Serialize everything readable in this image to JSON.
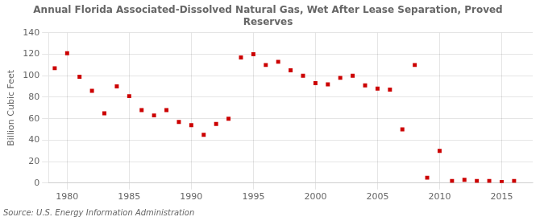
{
  "chart_data": {
    "type": "scatter",
    "title": "Annual Florida Associated-Dissolved Natural Gas, Wet After Lease Separation, Proved\nReserves",
    "ylabel": "Billion Cubic Feet",
    "annotation": "Source: U.S. Energy Information Administration",
    "color": "#cc0000",
    "marker": "square",
    "x": [
      1979,
      1980,
      1981,
      1982,
      1983,
      1984,
      1985,
      1986,
      1987,
      1988,
      1989,
      1990,
      1991,
      1992,
      1993,
      1994,
      1995,
      1996,
      1997,
      1998,
      1999,
      2000,
      2001,
      2002,
      2003,
      2004,
      2005,
      2006,
      2007,
      2008,
      2009,
      2010,
      2011,
      2012,
      2013,
      2014,
      2015,
      2016
    ],
    "values": [
      107,
      121,
      99,
      86,
      65,
      90,
      81,
      68,
      63,
      68,
      57,
      54,
      45,
      55,
      60,
      117,
      120,
      110,
      113,
      105,
      100,
      93,
      92,
      98,
      100,
      91,
      88,
      87,
      50,
      110,
      5,
      30,
      2,
      3,
      2,
      2,
      1,
      2
    ],
    "xlim": [
      1978.5,
      2017.5
    ],
    "xticks": [
      1980,
      1985,
      1990,
      1995,
      2000,
      2005,
      2010,
      2015
    ],
    "ylim": [
      0,
      140
    ],
    "yticks": [
      0,
      20,
      40,
      60,
      80,
      100,
      120,
      140
    ],
    "grid": true
  }
}
